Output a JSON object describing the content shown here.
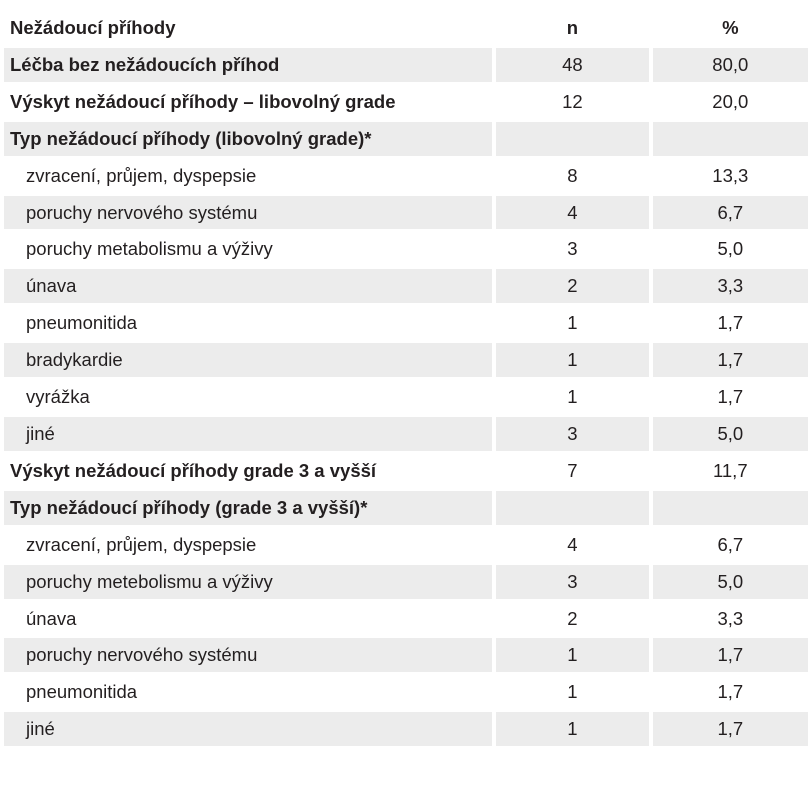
{
  "header": {
    "col1": "Nežádoucí příhody",
    "col2": "n",
    "col3": "%"
  },
  "rows": [
    {
      "label": "Léčba bez nežádoucích příhod",
      "n": "48",
      "pct": "80,0",
      "bold": true,
      "indent": false
    },
    {
      "label": "Výskyt nežádoucí příhody – libovolný grade",
      "n": "12",
      "pct": "20,0",
      "bold": true,
      "indent": false
    },
    {
      "label": "Typ nežádoucí příhody (libovolný grade)*",
      "n": "",
      "pct": "",
      "bold": true,
      "indent": false
    },
    {
      "label": "zvracení, průjem, dyspepsie",
      "n": "8",
      "pct": "13,3",
      "bold": false,
      "indent": true
    },
    {
      "label": "poruchy nervového systému",
      "n": "4",
      "pct": "6,7",
      "bold": false,
      "indent": true
    },
    {
      "label": "poruchy metabolismu a výživy",
      "n": "3",
      "pct": "5,0",
      "bold": false,
      "indent": true
    },
    {
      "label": "únava",
      "n": "2",
      "pct": "3,3",
      "bold": false,
      "indent": true
    },
    {
      "label": "pneumonitida",
      "n": "1",
      "pct": "1,7",
      "bold": false,
      "indent": true
    },
    {
      "label": "bradykardie",
      "n": "1",
      "pct": "1,7",
      "bold": false,
      "indent": true
    },
    {
      "label": "vyrážka",
      "n": "1",
      "pct": "1,7",
      "bold": false,
      "indent": true
    },
    {
      "label": "jiné",
      "n": "3",
      "pct": "5,0",
      "bold": false,
      "indent": true
    },
    {
      "label": "Výskyt nežádoucí příhody grade 3 a vyšší",
      "n": "7",
      "pct": "11,7",
      "bold": true,
      "indent": false
    },
    {
      "label": "Typ nežádoucí příhody (grade 3 a vyšší)*",
      "n": "",
      "pct": "",
      "bold": true,
      "indent": false
    },
    {
      "label": "zvracení, průjem, dyspepsie",
      "n": "4",
      "pct": "6,7",
      "bold": false,
      "indent": true
    },
    {
      "label": "poruchy metebolismu a výživy",
      "n": "3",
      "pct": "5,0",
      "bold": false,
      "indent": true
    },
    {
      "label": "únava",
      "n": "2",
      "pct": "3,3",
      "bold": false,
      "indent": true
    },
    {
      "label": "poruchy nervového systému",
      "n": "1",
      "pct": "1,7",
      "bold": false,
      "indent": true
    },
    {
      "label": "pneumonitida",
      "n": "1",
      "pct": "1,7",
      "bold": false,
      "indent": true
    },
    {
      "label": "jiné",
      "n": "1",
      "pct": "1,7",
      "bold": false,
      "indent": true
    }
  ]
}
